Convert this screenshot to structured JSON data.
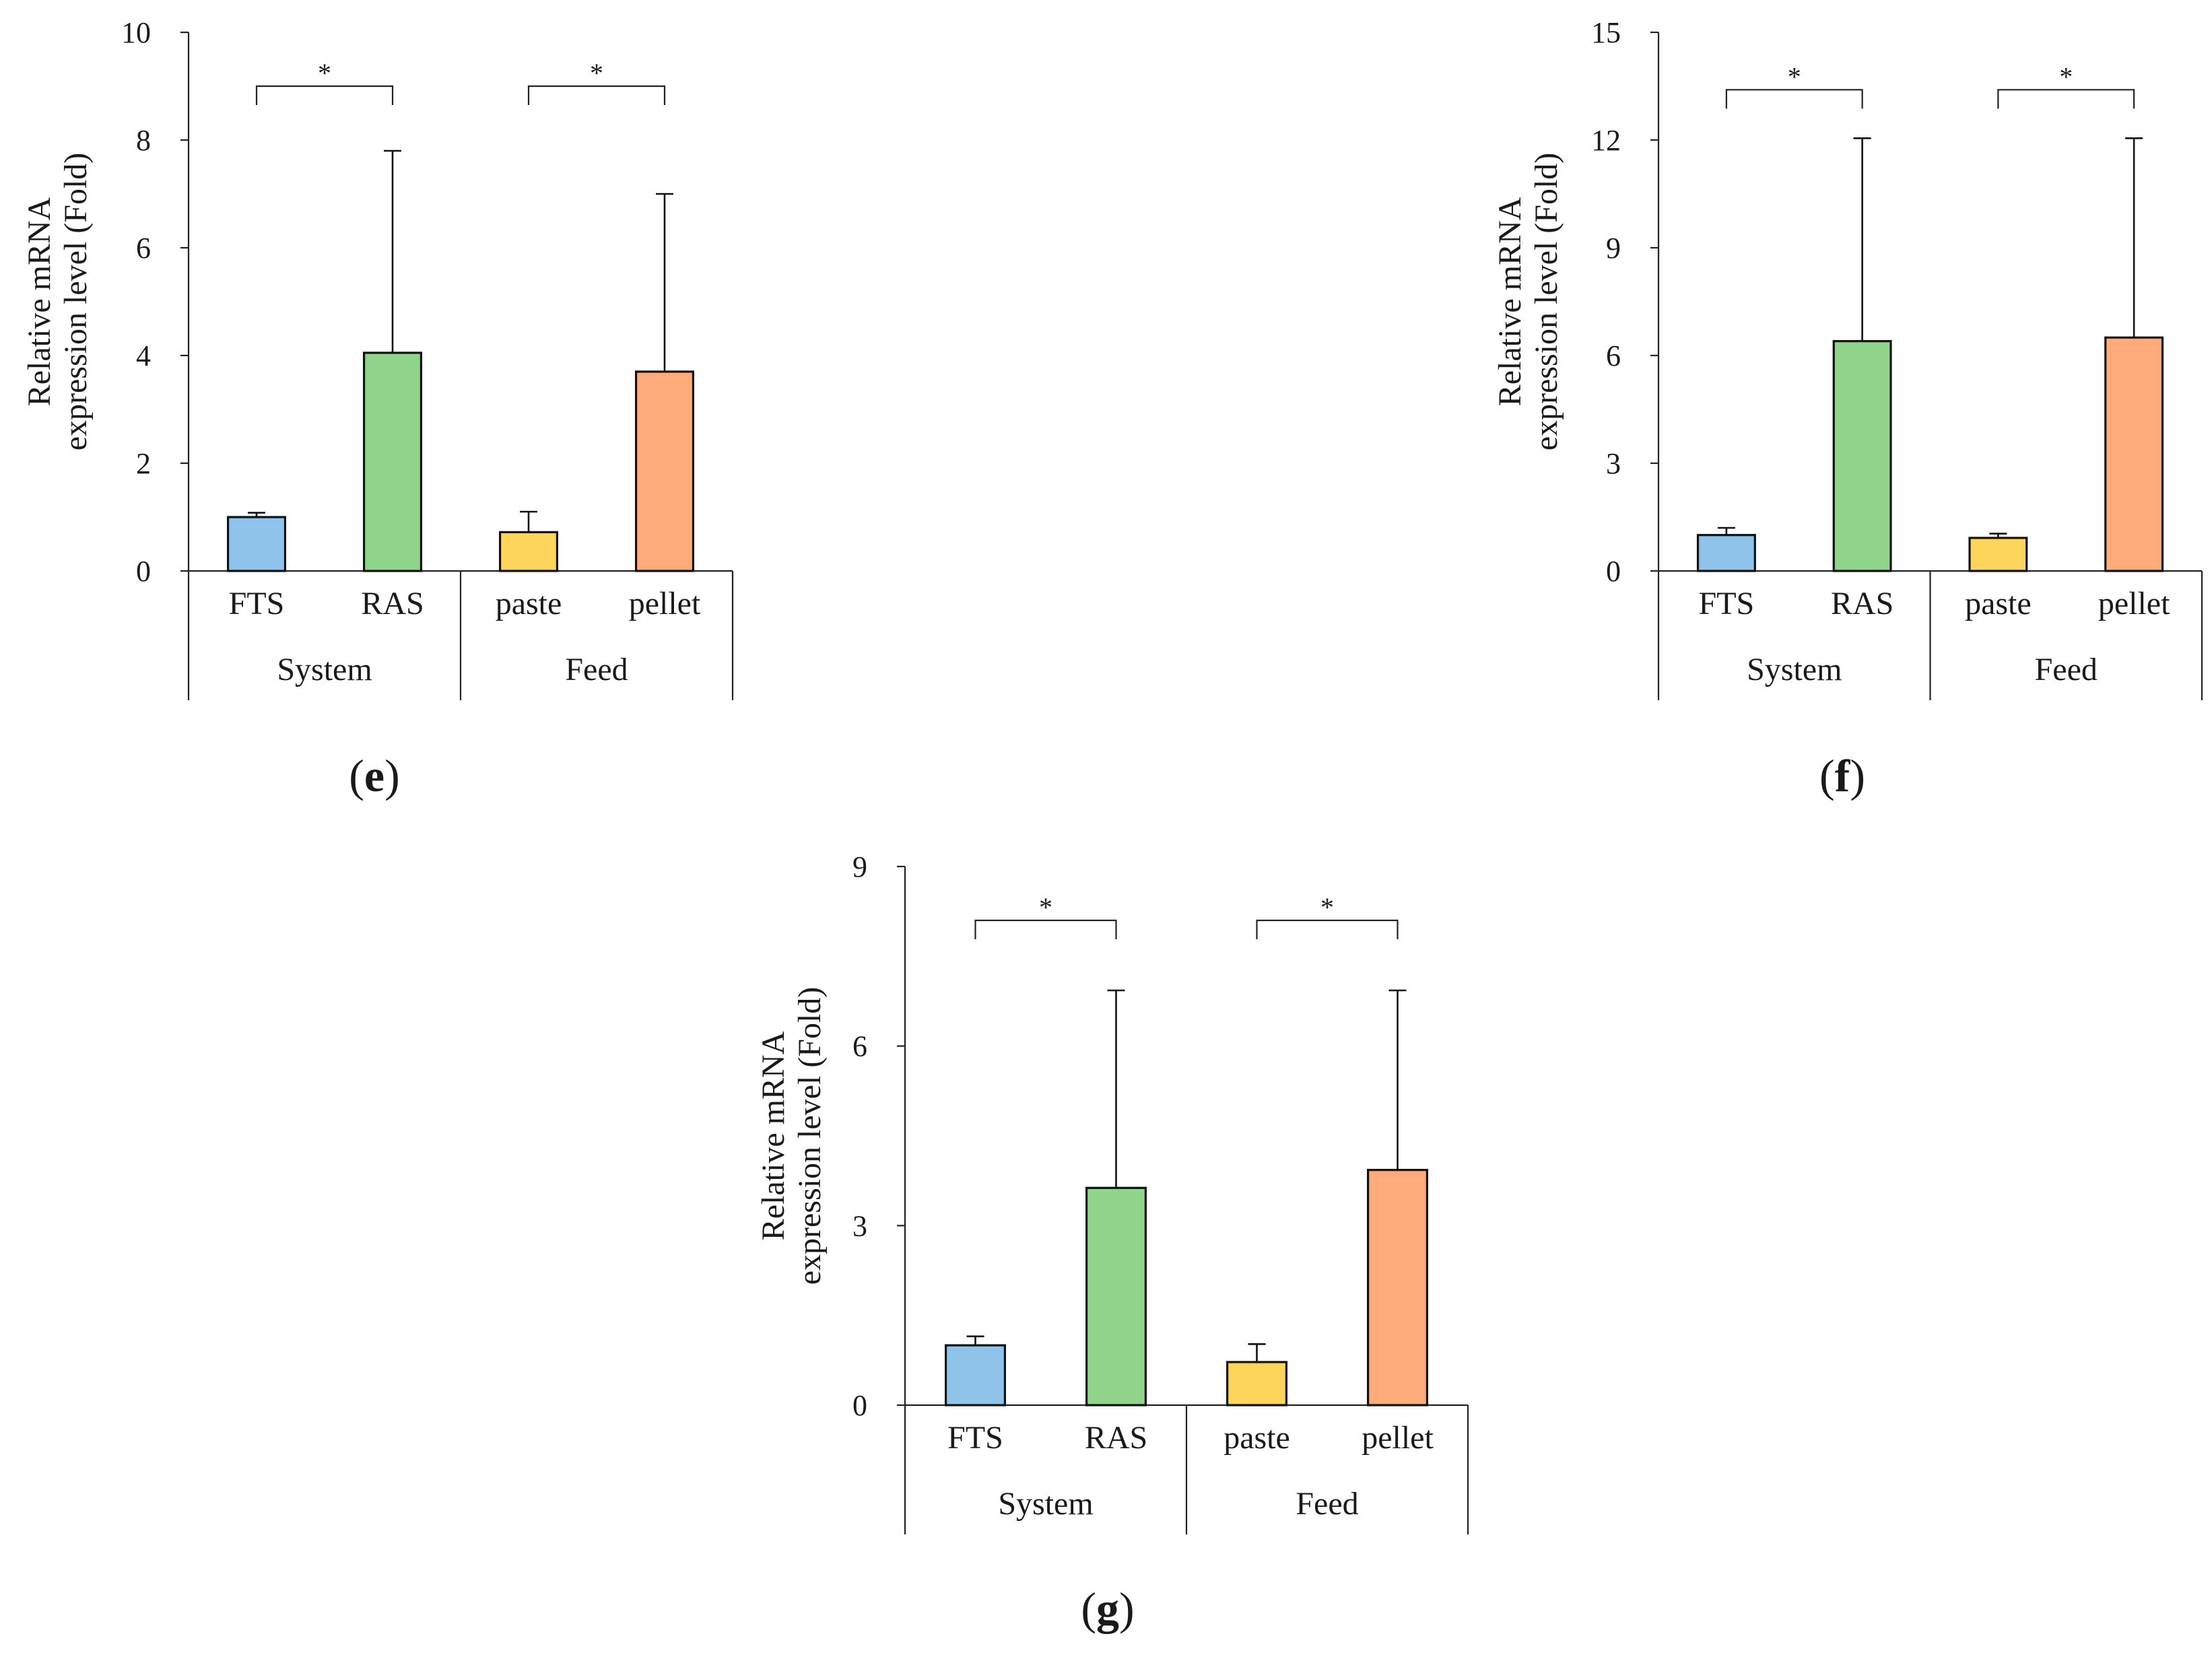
{
  "chart_data": [
    {
      "panel": "e",
      "type": "bar",
      "ylabel_line1": "Relative mRNA",
      "ylabel_line2": "expression level (Fold)",
      "ylim": [
        0,
        10
      ],
      "yticks": [
        0,
        2,
        4,
        6,
        8,
        10
      ],
      "ytick_labels": [
        "0",
        "2",
        "4",
        "6",
        "8",
        "10"
      ],
      "categories": [
        "FTS",
        "RAS",
        "paste",
        "pellet"
      ],
      "groups": [
        {
          "name": "System",
          "categories": [
            "FTS",
            "RAS"
          ]
        },
        {
          "name": "Feed",
          "categories": [
            "paste",
            "pellet"
          ]
        }
      ],
      "values": [
        1.0,
        4.05,
        0.72,
        3.7
      ],
      "errors": [
        0.08,
        3.75,
        0.38,
        3.3
      ],
      "colors": [
        "#8fc3ea",
        "#90d38a",
        "#fdd55a",
        "#ffab7c"
      ],
      "significance": [
        {
          "from": "FTS",
          "to": "RAS",
          "label": "*",
          "y": 9.0
        },
        {
          "from": "paste",
          "to": "pellet",
          "label": "*",
          "y": 9.0
        }
      ],
      "caption_open": "(",
      "caption_letter": "e",
      "caption_close": ")"
    },
    {
      "panel": "f",
      "type": "bar",
      "ylabel_line1": "Relative mRNA",
      "ylabel_line2": "expression level (Fold)",
      "ylim": [
        0,
        15
      ],
      "yticks": [
        0,
        3,
        6,
        9,
        12,
        15
      ],
      "ytick_labels": [
        "0",
        "3",
        "6",
        "9",
        "12",
        "15"
      ],
      "categories": [
        "FTS",
        "RAS",
        "paste",
        "pellet"
      ],
      "groups": [
        {
          "name": "System",
          "categories": [
            "FTS",
            "RAS"
          ]
        },
        {
          "name": "Feed",
          "categories": [
            "paste",
            "pellet"
          ]
        }
      ],
      "values": [
        1.0,
        6.4,
        0.92,
        6.5
      ],
      "errors": [
        0.2,
        5.65,
        0.12,
        5.55
      ],
      "colors": [
        "#8fc3ea",
        "#90d38a",
        "#fdd55a",
        "#ffab7c"
      ],
      "significance": [
        {
          "from": "FTS",
          "to": "RAS",
          "label": "*",
          "y": 13.4
        },
        {
          "from": "paste",
          "to": "pellet",
          "label": "*",
          "y": 13.4
        }
      ],
      "caption_open": "(",
      "caption_letter": "f",
      "caption_close": ")"
    },
    {
      "panel": "g",
      "type": "bar",
      "ylabel_line1": "Relative mRNA",
      "ylabel_line2": "expression level (Fold)",
      "ylim": [
        0,
        9
      ],
      "yticks": [
        0,
        3,
        6,
        9
      ],
      "ytick_labels": [
        "0",
        "3",
        "6",
        "9"
      ],
      "categories": [
        "FTS",
        "RAS",
        "paste",
        "pellet"
      ],
      "groups": [
        {
          "name": "System",
          "categories": [
            "FTS",
            "RAS"
          ]
        },
        {
          "name": "Feed",
          "categories": [
            "paste",
            "pellet"
          ]
        }
      ],
      "values": [
        1.0,
        3.63,
        0.72,
        3.93
      ],
      "errors": [
        0.15,
        3.3,
        0.3,
        3.0
      ],
      "colors": [
        "#8fc3ea",
        "#90d38a",
        "#fdd55a",
        "#ffab7c"
      ],
      "significance": [
        {
          "from": "FTS",
          "to": "RAS",
          "label": "*",
          "y": 8.1
        },
        {
          "from": "paste",
          "to": "pellet",
          "label": "*",
          "y": 8.1
        }
      ],
      "caption_open": "(",
      "caption_letter": "g",
      "caption_close": ")"
    }
  ]
}
